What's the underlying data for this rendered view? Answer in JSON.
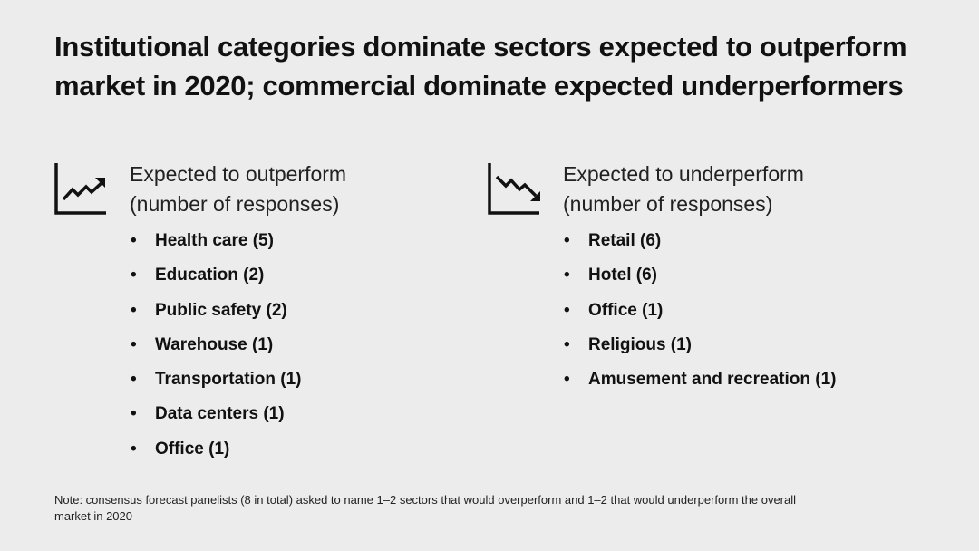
{
  "title": "Institutional categories dominate sectors expected to outperform market in 2020; commercial dominate expected underperformers",
  "outperform": {
    "icon": "trend-up-chart-icon",
    "heading_line1": "Expected to outperform",
    "heading_line2": "(number of responses)",
    "items": [
      "Health care (5)",
      "Education (2)",
      "Public safety (2)",
      "Warehouse (1)",
      "Transportation (1)",
      "Data centers (1)",
      "Office (1)"
    ]
  },
  "underperform": {
    "icon": "trend-down-chart-icon",
    "heading_line1": "Expected to underperform",
    "heading_line2": "(number of responses)",
    "items": [
      "Retail (6)",
      "Hotel (6)",
      "Office (1)",
      "Religious (1)",
      "Amusement and recreation (1)"
    ]
  },
  "note": "Note: consensus forecast panelists (8 in total) asked to name 1–2 sectors that would overperform and 1–2 that would underperform the overall market in 2020",
  "colors": {
    "background": "#ececec",
    "text": "#111111"
  }
}
